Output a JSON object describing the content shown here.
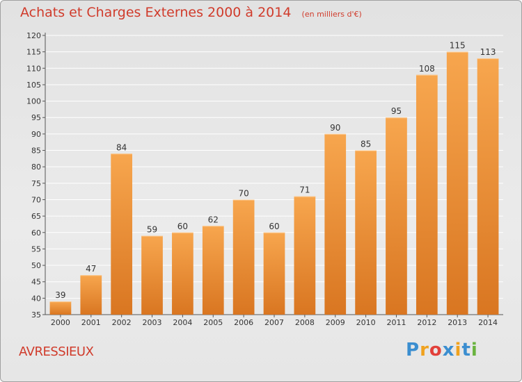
{
  "title": {
    "main": "Achats et Charges Externes 2000 à 2014",
    "unit": "(en milliers d'€)"
  },
  "commune": "AVRESSIEUX",
  "logo": {
    "text": "Proxiti",
    "letters": [
      {
        "ch": "P",
        "color": "#3b8ed0"
      },
      {
        "ch": "r",
        "color": "#f0a21e"
      },
      {
        "ch": "o",
        "color": "#e2403a"
      },
      {
        "ch": "x",
        "color": "#3b8ed0"
      },
      {
        "ch": "i",
        "color": "#f0a21e"
      },
      {
        "ch": "t",
        "color": "#3b8ed0"
      },
      {
        "ch": "i",
        "color": "#6ab33f"
      }
    ]
  },
  "colors": {
    "title": "#d03b2b",
    "bar_top": "#f7a64e",
    "bar_bottom": "#d97621",
    "text": "#333333",
    "grid": "#ffffff"
  },
  "chart_data": {
    "type": "bar",
    "categories": [
      "2000",
      "2001",
      "2002",
      "2003",
      "2004",
      "2005",
      "2006",
      "2007",
      "2008",
      "2009",
      "2010",
      "2011",
      "2012",
      "2013",
      "2014"
    ],
    "values": [
      39,
      47,
      84,
      59,
      60,
      62,
      70,
      60,
      71,
      90,
      85,
      95,
      108,
      115,
      113
    ],
    "ylim": [
      35,
      120
    ],
    "yticks": [
      35,
      40,
      45,
      50,
      55,
      60,
      65,
      70,
      75,
      80,
      85,
      90,
      95,
      100,
      105,
      110,
      115,
      120
    ],
    "grid": true,
    "data_labels": true
  }
}
